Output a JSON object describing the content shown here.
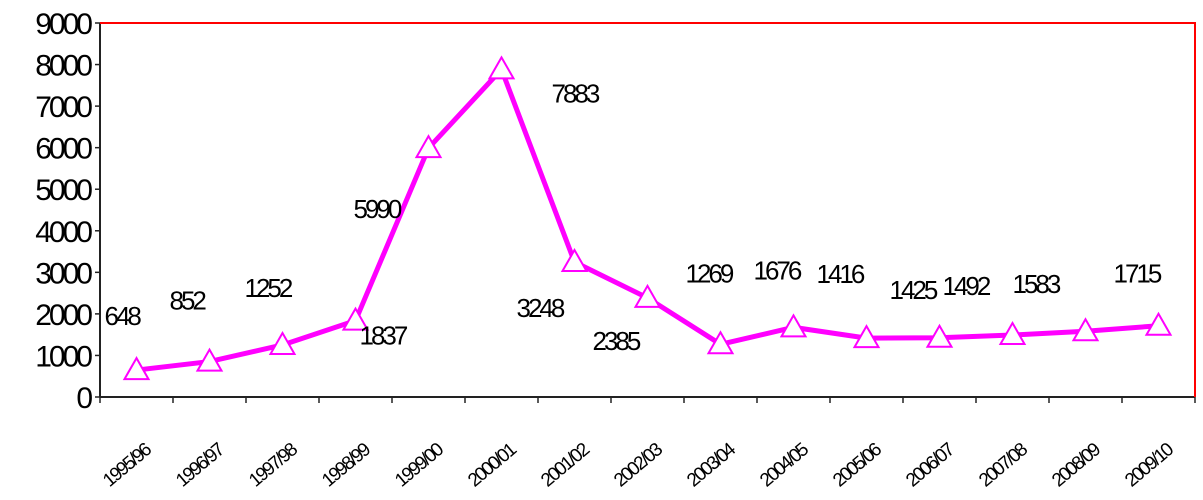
{
  "chart_data": {
    "type": "line",
    "title": "",
    "xlabel": "",
    "ylabel": "",
    "ylim": [
      0,
      9000
    ],
    "yticks": [
      0,
      1000,
      2000,
      3000,
      4000,
      5000,
      6000,
      7000,
      8000,
      9000
    ],
    "ytick_labels": [
      "0",
      "1000",
      "2000",
      "3000",
      "4000",
      "5000",
      "6000",
      "7000",
      "8000",
      "9000"
    ],
    "categories": [
      "1995/96",
      "1996/97",
      "1997/98",
      "1998/99",
      "1999/00",
      "2000/01",
      "2001/02",
      "2002/03",
      "2003/04",
      "2004/05",
      "2005/06",
      "2006/07",
      "2007/08",
      "2008/09",
      "2009/10"
    ],
    "series": [
      {
        "values": [
          648,
          852,
          1252,
          1837,
          5990,
          7883,
          3248,
          2385,
          1269,
          1676,
          1416,
          1425,
          1492,
          1583,
          1715
        ],
        "data_labels": [
          "648",
          "852",
          "1252",
          "1837",
          "5990",
          "7883",
          "3248",
          "2385",
          "1269",
          "1676",
          "1416",
          "1425",
          "1492",
          "1583",
          "1715"
        ],
        "color": "#ff00ff",
        "marker": "triangle"
      }
    ],
    "grid": false,
    "legend": "none",
    "plot_border_color": "#ff0000"
  }
}
